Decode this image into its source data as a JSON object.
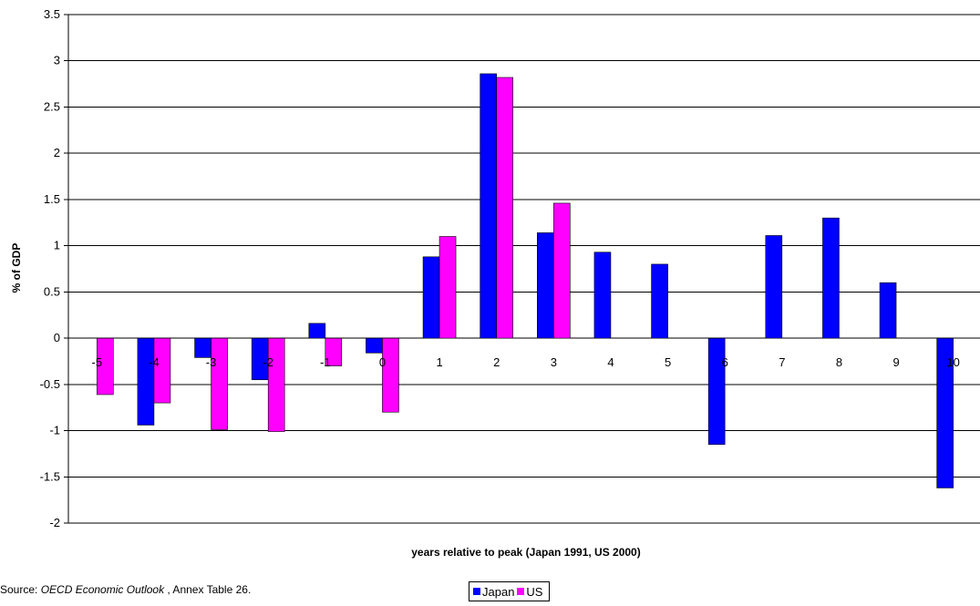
{
  "chart_data": {
    "type": "bar",
    "title": "",
    "xlabel": "years relative to peak (Japan 1991, US 2000)",
    "ylabel": "% of GDP",
    "ylim": [
      -2,
      3.5
    ],
    "yticks": [
      "3.5",
      "3",
      "2.5",
      "2",
      "1.5",
      "1",
      "0.5",
      "0",
      "-0.5",
      "-1",
      "-1.5",
      "-2"
    ],
    "categories": [
      "-5",
      "-4",
      "-3",
      "-2",
      "-1",
      "0",
      "1",
      "2",
      "3",
      "4",
      "5",
      "6",
      "7",
      "8",
      "9",
      "10"
    ],
    "series": [
      {
        "name": "Japan",
        "color": "#0000FF",
        "values": [
          null,
          -0.94,
          -0.21,
          -0.45,
          0.16,
          -0.16,
          0.88,
          2.86,
          1.14,
          0.93,
          0.8,
          -1.15,
          1.11,
          1.3,
          0.6,
          -1.62
        ]
      },
      {
        "name": "US",
        "color": "#FF00FF",
        "values": [
          -0.61,
          -0.7,
          -0.99,
          -1.01,
          -0.3,
          -0.8,
          1.1,
          2.82,
          1.46,
          null,
          null,
          null,
          null,
          null,
          null,
          null
        ]
      }
    ],
    "grid": true,
    "legend": "bottom"
  },
  "source": {
    "prefix": "Source: ",
    "publication": "OECD Economic Outlook",
    "suffix": " , Annex Table 26."
  }
}
